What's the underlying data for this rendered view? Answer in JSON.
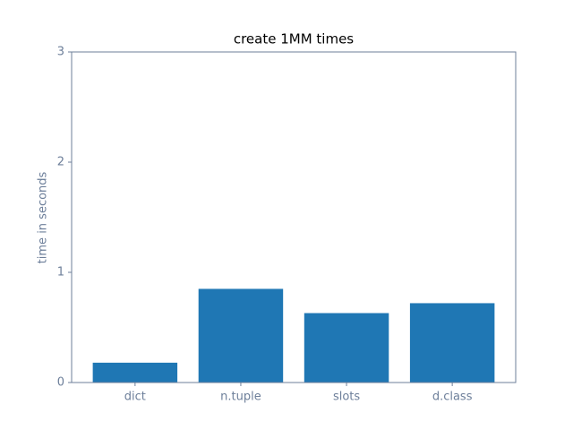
{
  "chart_data": {
    "type": "bar",
    "title": "create 1MM times",
    "y_label": "time in seconds",
    "categories": [
      "dict",
      "n.tuple",
      "slots",
      "d.class"
    ],
    "values": [
      0.18,
      0.85,
      0.63,
      0.72
    ],
    "color": "#1f77b4",
    "ylim": [
      0,
      3
    ],
    "yticks": [
      0,
      1,
      2,
      3
    ],
    "grid": false
  }
}
